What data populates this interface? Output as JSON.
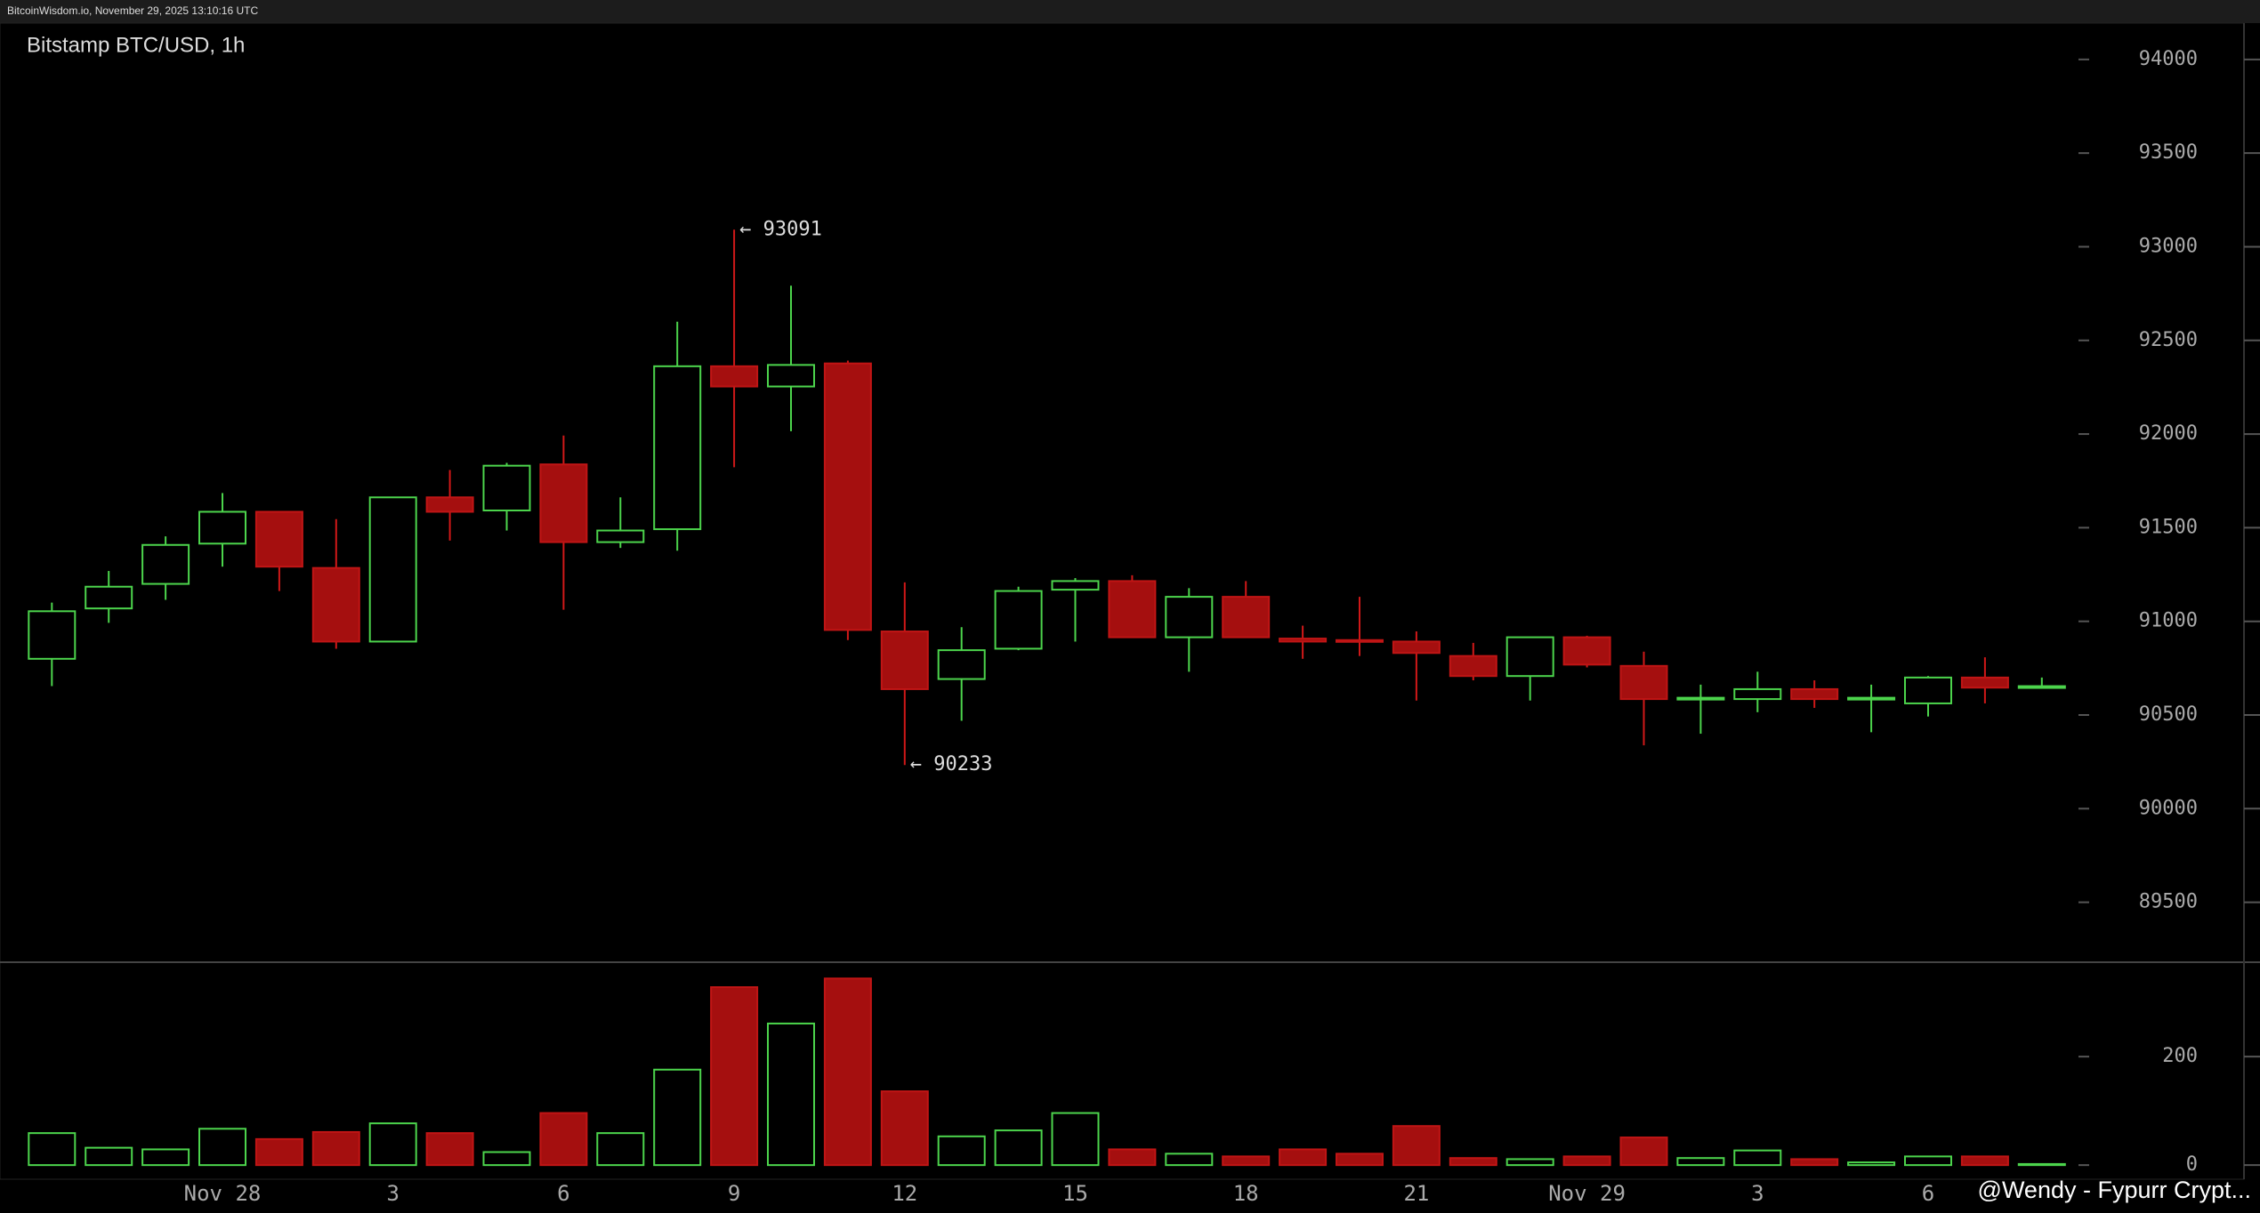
{
  "chart_data": {
    "type": "candlestick",
    "header": "BitcoinWisdom.io, November 29, 2025 13:10:16 UTC",
    "title": "Bitstamp BTC/USD, 1h",
    "categories": [
      null,
      null,
      null,
      "Nov 28",
      null,
      null,
      "3",
      null,
      null,
      "6",
      null,
      null,
      "9",
      null,
      null,
      "12",
      null,
      null,
      "15",
      null,
      null,
      "18",
      null,
      null,
      "21",
      null,
      null,
      "Nov 29",
      null,
      null,
      "3",
      null,
      null,
      "6",
      null,
      null
    ],
    "open": [
      90800,
      91069,
      91200,
      91415,
      91585,
      91285,
      90892,
      91662,
      91592,
      91838,
      91423,
      91492,
      92362,
      92254,
      92377,
      90946,
      90692,
      90854,
      91169,
      91215,
      90915,
      91131,
      90908,
      90900,
      90892,
      90815,
      90708,
      90915,
      90762,
      90585,
      90585,
      90638,
      90585,
      90562,
      90700,
      90646
    ],
    "high": [
      91100,
      91269,
      91454,
      91685,
      91585,
      91546,
      91662,
      91808,
      91846,
      91992,
      91662,
      92600,
      93091,
      92792,
      92392,
      91208,
      90969,
      91185,
      91231,
      91246,
      91177,
      91215,
      90977,
      91131,
      90946,
      90885,
      90915,
      90923,
      90838,
      90662,
      90731,
      90685,
      90662,
      90708,
      90808,
      90700
    ],
    "low": [
      90654,
      90992,
      91115,
      91292,
      91162,
      90854,
      90892,
      91431,
      91485,
      91062,
      91392,
      91377,
      91823,
      92015,
      90900,
      90233,
      90469,
      90846,
      90892,
      90915,
      90731,
      90915,
      90800,
      90815,
      90577,
      90685,
      90577,
      90754,
      90338,
      90400,
      90515,
      90538,
      90408,
      90492,
      90562,
      90646
    ],
    "close": [
      91054,
      91185,
      91408,
      91585,
      91292,
      90892,
      91662,
      91585,
      91831,
      91423,
      91485,
      92362,
      92254,
      92369,
      90954,
      90638,
      90846,
      91162,
      91215,
      90915,
      91131,
      90915,
      90892,
      90892,
      90831,
      90708,
      90915,
      90769,
      90585,
      90592,
      90638,
      90585,
      90592,
      90700,
      90646,
      90654
    ],
    "volume": [
      59,
      32,
      29,
      67,
      48,
      61,
      77,
      59,
      24,
      96,
      59,
      176,
      328,
      261,
      344,
      136,
      53,
      64,
      96,
      29,
      21,
      16,
      29,
      21,
      72,
      13,
      11,
      16,
      51,
      13,
      27,
      11,
      5,
      16,
      16,
      2
    ],
    "up_color": "#4cd44c",
    "down_color": "#a50f0f",
    "ylim": [
      89180,
      94194
    ],
    "yticks": [
      89500,
      90000,
      90500,
      91000,
      91500,
      92000,
      92500,
      93000,
      93500,
      94000
    ],
    "volume_ylim": [
      -26,
      374
    ],
    "volume_yticks": [
      0,
      200
    ],
    "high_annotation": "← 93091",
    "low_annotation": "← 90233",
    "watermark": "@Wendy - Fypurr Crypt..."
  }
}
